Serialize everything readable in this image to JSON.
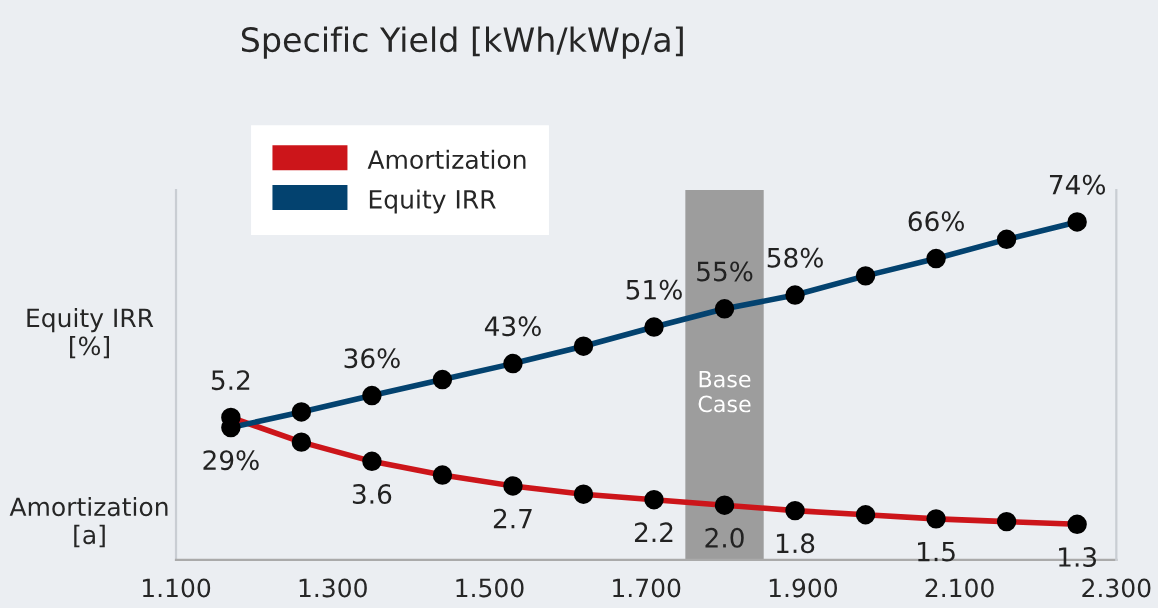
{
  "chart_data": {
    "type": "line",
    "title": "Specific Yield [kWh/kWp/a]",
    "ylabel": "Amortization\n[a]",
    "y2label": "Equity IRR\n[%]",
    "x": [
      1.17,
      1.26,
      1.35,
      1.44,
      1.53,
      1.62,
      1.71,
      1.8,
      1.89,
      1.98,
      2.07,
      2.16,
      2.25
    ],
    "series": [
      {
        "name": "Amortization",
        "color": "#cc151a",
        "values": [
          5.2,
          4.3,
          3.6,
          3.1,
          2.7,
          2.4,
          2.2,
          2.0,
          1.8,
          1.65,
          1.5,
          1.4,
          1.3
        ],
        "value_labels": [
          "5.2",
          null,
          "3.6",
          null,
          "2.7",
          null,
          "2.2",
          "2.0",
          "1.8",
          null,
          "1.5",
          null,
          "1.3"
        ]
      },
      {
        "name": "Equity IRR",
        "color": "#03426f",
        "axis": "y2",
        "values": [
          29,
          32.4,
          36,
          39.5,
          43,
          46.8,
          51,
          55,
          58,
          62.2,
          66,
          70.2,
          74
        ],
        "value_labels": [
          "29%",
          null,
          "36%",
          null,
          "43%",
          null,
          "51%",
          "55%",
          "58%",
          null,
          "66%",
          null,
          "74%"
        ]
      }
    ],
    "xlim": [
      1.1,
      2.3
    ],
    "xticks": [
      {
        "value": 1.1,
        "label": "1.100"
      },
      {
        "value": 1.3,
        "label": "1.300"
      },
      {
        "value": 1.5,
        "label": "1.500"
      },
      {
        "value": 1.7,
        "label": "1.700"
      },
      {
        "value": 1.9,
        "label": "1.900"
      },
      {
        "value": 2.1,
        "label": "2.100"
      },
      {
        "value": 2.3,
        "label": "2.300"
      }
    ],
    "ylim": [
      0,
      13.5
    ],
    "y2lim": [
      0,
      81
    ],
    "tick_labels": "x",
    "bands": [
      {
        "axis": "x",
        "from": 1.75,
        "to": 1.85,
        "label": "Base\nCase",
        "color": "#9d9d9d"
      }
    ],
    "marker": "circle",
    "line_style": "solid",
    "grid": false,
    "legend": "top left"
  }
}
